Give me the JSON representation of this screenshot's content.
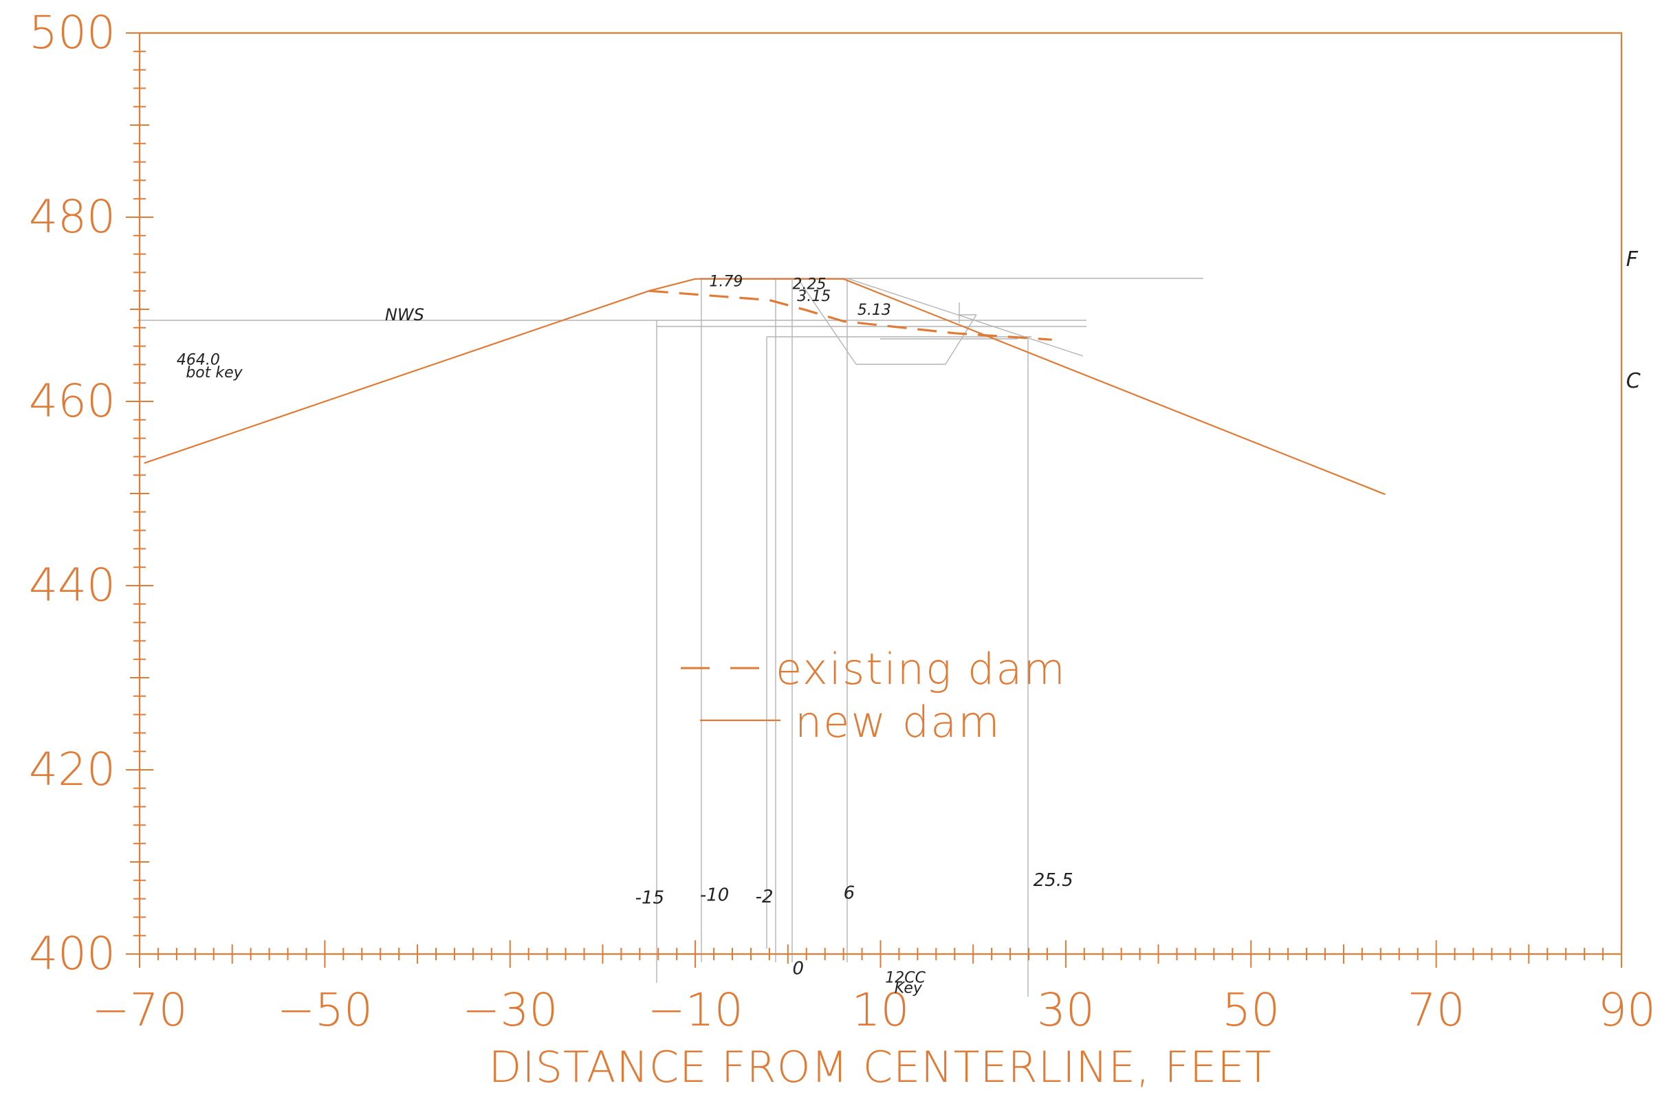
{
  "colors": {
    "accent": "#e07a35",
    "pencil": "#9a9a9a",
    "ink": "#222222"
  },
  "chart_data": {
    "type": "line",
    "title": "",
    "xlabel": "DISTANCE FROM CENTERLINE, FEET",
    "ylabel": "",
    "xlim": [
      -70,
      90
    ],
    "ylim": [
      400,
      500
    ],
    "x_ticks": [
      "−70",
      "−50",
      "−30",
      "−10",
      "10",
      "30",
      "50",
      "70",
      "90"
    ],
    "y_ticks": [
      "500",
      "480",
      "460",
      "440",
      "420",
      "400"
    ],
    "legend": {
      "position": "center",
      "entries": [
        {
          "style": "dashed",
          "label": "existing dam"
        },
        {
          "style": "solid",
          "label": "new dam"
        }
      ]
    },
    "series": [
      {
        "name": "new dam",
        "style": "solid",
        "points": [
          [
            -69.5,
            453.3
          ],
          [
            -15,
            472.0
          ],
          [
            -10,
            473.3
          ],
          [
            6,
            473.3
          ],
          [
            64.5,
            449.9
          ]
        ]
      },
      {
        "name": "existing dam",
        "style": "dashed",
        "points": [
          [
            -15,
            472.0
          ],
          [
            -2,
            471.0
          ],
          [
            2,
            469.9
          ],
          [
            6,
            468.7
          ],
          [
            18,
            467.4
          ],
          [
            28.5,
            466.7
          ]
        ]
      }
    ],
    "annotations": [
      {
        "text": "NWS",
        "x": -43.5,
        "y": 468.8
      },
      {
        "text": "464.0",
        "x": -66,
        "y": 464.0
      },
      {
        "text": "bot key",
        "x": -65,
        "y": 462.6
      },
      {
        "text": "1.79",
        "x": -8.5,
        "y": 472.5
      },
      {
        "text": "2.25",
        "x": 0.5,
        "y": 472.2
      },
      {
        "text": "3.15",
        "x": 1.0,
        "y": 470.9
      },
      {
        "text": "5.13",
        "x": 7.5,
        "y": 469.4
      },
      {
        "text": "-15",
        "x": -16.5,
        "y": 405.5
      },
      {
        "text": "-10",
        "x": -9.5,
        "y": 405.8
      },
      {
        "text": "-2",
        "x": -3.5,
        "y": 405.6
      },
      {
        "text": "6",
        "x": 6.0,
        "y": 406.0
      },
      {
        "text": "25.5",
        "x": 26.5,
        "y": 407.4
      },
      {
        "text": "0",
        "x": 0.5,
        "y": 397.8
      },
      {
        "text": "12CC",
        "x": 10.5,
        "y": 396.9
      },
      {
        "text": "Key",
        "x": 11.5,
        "y": 395.8
      },
      {
        "text": "F",
        "x": 90.5,
        "y": 474.7
      },
      {
        "text": "C",
        "x": 90.5,
        "y": 461.5
      }
    ]
  }
}
